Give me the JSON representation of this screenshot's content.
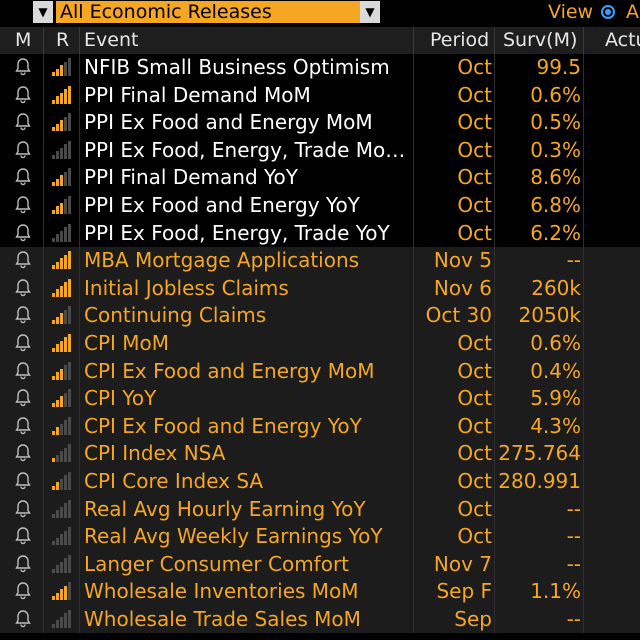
{
  "toolbar": {
    "filter_value": "All Economic Releases",
    "dropdown_arrow": "▼",
    "view_label": "View",
    "view_option_partial": "A"
  },
  "columns": {
    "m": "M",
    "r": "R",
    "event": "Event",
    "period": "Period",
    "surv": "Surv(M)",
    "actual": "Actu"
  },
  "rows": [
    {
      "event": "NFIB Small Business Optimism",
      "period": "Oct",
      "surv": "99.5",
      "rating": 3,
      "hi": true
    },
    {
      "event": "PPI Final Demand MoM",
      "period": "Oct",
      "surv": "0.6%",
      "rating": 5,
      "hi": true
    },
    {
      "event": "PPI Ex Food and Energy MoM",
      "period": "Oct",
      "surv": "0.5%",
      "rating": 3,
      "hi": true
    },
    {
      "event": "PPI Ex Food, Energy, Trade Mo…",
      "period": "Oct",
      "surv": "0.3%",
      "rating": 0,
      "hi": true
    },
    {
      "event": "PPI Final Demand YoY",
      "period": "Oct",
      "surv": "8.6%",
      "rating": 3,
      "hi": true
    },
    {
      "event": "PPI Ex Food and Energy YoY",
      "period": "Oct",
      "surv": "6.8%",
      "rating": 3,
      "hi": true
    },
    {
      "event": "PPI Ex Food, Energy, Trade YoY",
      "period": "Oct",
      "surv": "6.2%",
      "rating": 0,
      "hi": true
    },
    {
      "event": "MBA Mortgage Applications",
      "period": "Nov 5",
      "surv": "--",
      "rating": 5,
      "hi": false
    },
    {
      "event": "Initial Jobless Claims",
      "period": "Nov 6",
      "surv": "260k",
      "rating": 5,
      "hi": false
    },
    {
      "event": "Continuing Claims",
      "period": "Oct 30",
      "surv": "2050k",
      "rating": 3,
      "hi": false
    },
    {
      "event": "CPI MoM",
      "period": "Oct",
      "surv": "0.6%",
      "rating": 5,
      "hi": false
    },
    {
      "event": "CPI Ex Food and Energy MoM",
      "period": "Oct",
      "surv": "0.4%",
      "rating": 3,
      "hi": false
    },
    {
      "event": "CPI YoY",
      "period": "Oct",
      "surv": "5.9%",
      "rating": 3,
      "hi": false
    },
    {
      "event": "CPI Ex Food and Energy YoY",
      "period": "Oct",
      "surv": "4.3%",
      "rating": 2,
      "hi": false
    },
    {
      "event": "CPI Index NSA",
      "period": "Oct",
      "surv": "275.764",
      "rating": 1,
      "hi": false
    },
    {
      "event": "CPI Core Index SA",
      "period": "Oct",
      "surv": "280.991",
      "rating": 2,
      "hi": false
    },
    {
      "event": "Real Avg Hourly Earning YoY",
      "period": "Oct",
      "surv": "--",
      "rating": 0,
      "hi": false
    },
    {
      "event": "Real Avg Weekly Earnings YoY",
      "period": "Oct",
      "surv": "--",
      "rating": 0,
      "hi": false
    },
    {
      "event": "Langer Consumer Comfort",
      "period": "Nov 7",
      "surv": "--",
      "rating": 0,
      "hi": false
    },
    {
      "event": "Wholesale Inventories MoM",
      "period": "Sep F",
      "surv": "1.1%",
      "rating": 4,
      "hi": false
    },
    {
      "event": "Wholesale Trade Sales MoM",
      "period": "Sep",
      "surv": "--",
      "rating": 0,
      "hi": false
    }
  ],
  "colors": {
    "accent": "#f5a623",
    "released_text": "#ffffff",
    "upcoming_text": "#f5a623",
    "background": "#000000",
    "header_bg": "#1e1e1e"
  },
  "icons": {
    "alert": "bell-icon",
    "relevance": "signal-bars-icon"
  }
}
